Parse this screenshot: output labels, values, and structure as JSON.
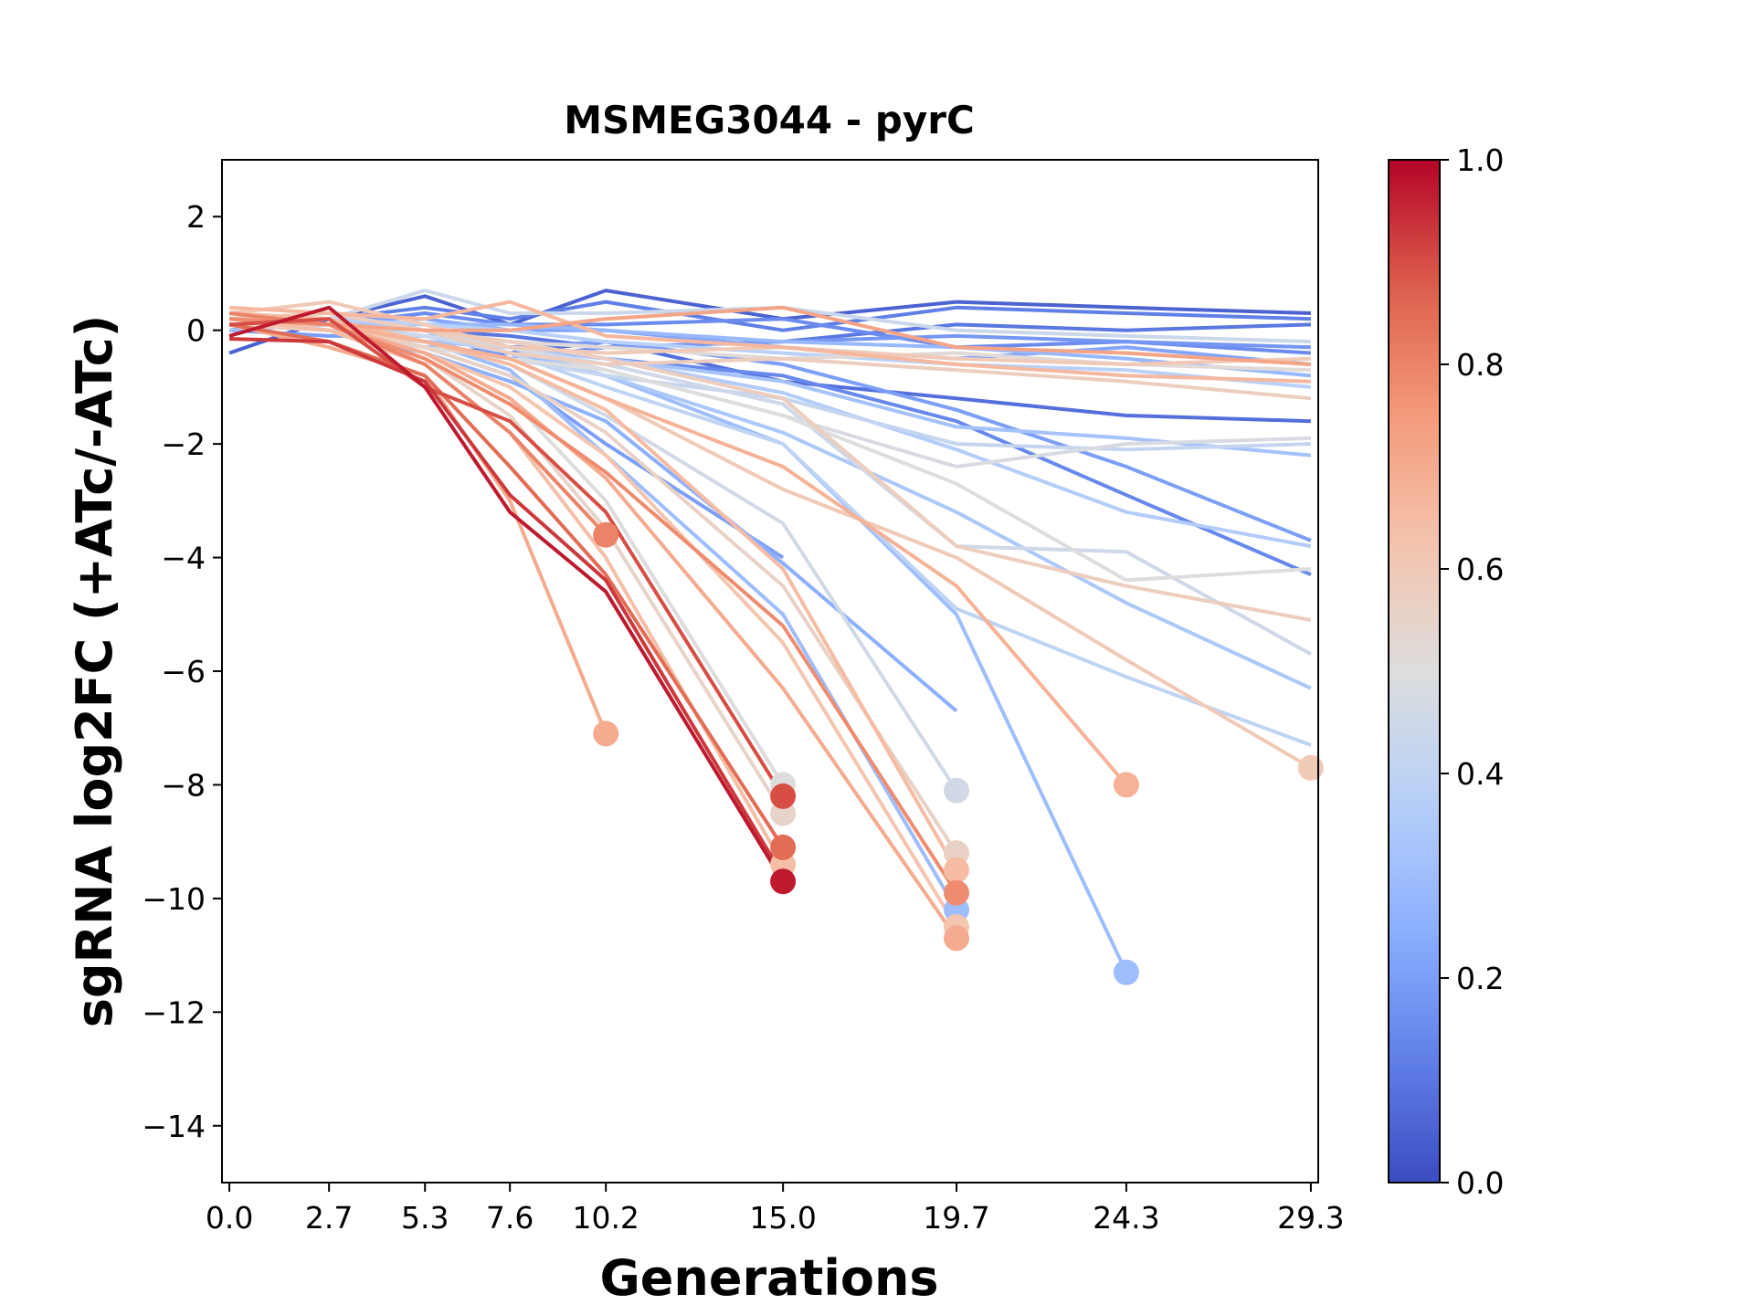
{
  "chart_data": {
    "type": "line",
    "title": "MSMEG3044 - pyrC",
    "xlabel": "Generations",
    "ylabel": "sgRNA log2FC (+ATc/-ATc)",
    "xlim": [
      -0.2,
      29.5
    ],
    "ylim": [
      -15,
      3
    ],
    "x_ticks": [
      "0.0",
      "2.7",
      "5.3",
      "7.6",
      "10.2",
      "15.0",
      "19.7",
      "24.3",
      "29.3"
    ],
    "x_tick_values": [
      0.0,
      2.7,
      5.3,
      7.6,
      10.2,
      15.0,
      19.7,
      24.3,
      29.3
    ],
    "y_ticks": [
      2,
      0,
      -2,
      -4,
      -6,
      -8,
      -10,
      -12,
      -14
    ],
    "y_tick_labels": [
      "2",
      "0",
      "−2",
      "−4",
      "−6",
      "−8",
      "−10",
      "−12",
      "−14"
    ],
    "colormap": "coolwarm",
    "colorbar": {
      "range": [
        0.0,
        1.0
      ],
      "ticks": [
        0.0,
        0.2,
        0.4,
        0.6,
        0.8,
        1.0
      ],
      "tick_labels": [
        "0.0",
        "0.2",
        "0.4",
        "0.6",
        "0.8",
        "1.0"
      ],
      "colors": [
        "#3b4cc0",
        "#6788ee",
        "#9abbff",
        "#c9d7f0",
        "#dddddd",
        "#f7c4a8",
        "#f49a7b",
        "#e0654f",
        "#b40426"
      ]
    },
    "grid": false,
    "legend": "none",
    "series": [
      {
        "c": 0.05,
        "x": [
          0.0,
          2.7,
          5.3,
          7.6,
          10.2,
          15.0,
          19.7,
          24.3,
          29.3
        ],
        "y": [
          -0.4,
          0.2,
          0.6,
          0.1,
          0.7,
          0.2,
          0.5,
          0.4,
          0.3
        ]
      },
      {
        "c": 0.08,
        "x": [
          0.0,
          2.7,
          5.3,
          7.6,
          10.2,
          15.0,
          19.7,
          24.3,
          29.3
        ],
        "y": [
          0.1,
          0.0,
          -0.3,
          -0.4,
          -0.2,
          -0.9,
          -1.2,
          -1.5,
          -1.6
        ]
      },
      {
        "c": 0.1,
        "x": [
          0.0,
          2.7,
          5.3,
          7.6,
          10.2,
          15.0,
          19.7,
          24.3,
          29.3
        ],
        "y": [
          0.2,
          0.1,
          0.0,
          -0.1,
          -0.3,
          -0.2,
          0.1,
          0.0,
          0.1
        ]
      },
      {
        "c": 0.12,
        "x": [
          0.0,
          2.7,
          5.3,
          7.6,
          10.2,
          15.0,
          19.7,
          24.3,
          29.3
        ],
        "y": [
          0.0,
          0.2,
          0.4,
          0.2,
          0.5,
          0.0,
          0.4,
          0.3,
          0.2
        ]
      },
      {
        "c": 0.14,
        "x": [
          0.0,
          2.7,
          5.3,
          7.6,
          10.2,
          15.0,
          19.7,
          24.3,
          29.3
        ],
        "y": [
          0.2,
          0.0,
          -0.2,
          -0.3,
          -0.5,
          -0.8,
          -1.6,
          -2.9,
          -4.3
        ]
      },
      {
        "c": 0.15,
        "x": [
          0.0,
          2.7,
          5.3,
          7.6,
          10.2,
          15.0,
          19.7,
          24.3,
          29.3
        ],
        "y": [
          0.1,
          0.1,
          0.3,
          0.1,
          0.1,
          0.2,
          -0.3,
          -0.2,
          -0.4
        ]
      },
      {
        "c": 0.18,
        "x": [
          0.0,
          2.7,
          5.3,
          7.6,
          10.2,
          15.0,
          19.7,
          24.3,
          29.3
        ],
        "y": [
          0.1,
          0.1,
          0.0,
          -0.5,
          -0.3,
          -0.2,
          -0.1,
          -0.2,
          -0.3
        ]
      },
      {
        "c": 0.2,
        "x": [
          0.0,
          2.7,
          5.3,
          7.6,
          10.2,
          15.0
        ],
        "y": [
          0.2,
          0.1,
          -0.3,
          -0.8,
          -2.0,
          -4.0
        ]
      },
      {
        "c": 0.2,
        "x": [
          0.0,
          2.7,
          5.3,
          7.6,
          10.2,
          15.0,
          19.7,
          24.3,
          29.3
        ],
        "y": [
          0.0,
          -0.1,
          -0.1,
          -0.3,
          -0.2,
          -0.6,
          -1.4,
          -2.4,
          -3.7
        ]
      },
      {
        "c": 0.22,
        "x": [
          0.0,
          2.7,
          5.3,
          7.6,
          10.2,
          15.0,
          19.7,
          24.3,
          29.3
        ],
        "y": [
          0.2,
          0.2,
          0.2,
          0.0,
          0.0,
          -0.3,
          -0.5,
          -0.3,
          -0.6
        ]
      },
      {
        "c": 0.25,
        "x": [
          0.0,
          2.7,
          5.3,
          7.6,
          10.2,
          15.0,
          19.7
        ],
        "y": [
          0.1,
          0.0,
          -0.4,
          -0.9,
          -1.6,
          -4.1,
          -6.7
        ]
      },
      {
        "c": 0.28,
        "x": [
          0.0,
          2.7,
          5.3,
          7.6,
          10.2,
          15.0,
          19.7,
          24.3,
          29.3
        ],
        "y": [
          0.1,
          0.1,
          0.1,
          0.1,
          0.0,
          -0.2,
          -0.3,
          -0.5,
          -0.8
        ]
      },
      {
        "c": 0.3,
        "x": [
          0.0,
          2.7,
          5.3,
          7.6,
          10.2,
          15.0,
          19.7
        ],
        "y": [
          0.2,
          0.1,
          -0.2,
          -0.7,
          -2.2,
          -5.0,
          -10.2
        ],
        "end": true
      },
      {
        "c": 0.3,
        "x": [
          0.0,
          2.7,
          5.3,
          7.6,
          10.2,
          15.0,
          19.7,
          24.3
        ],
        "y": [
          0.2,
          0.1,
          -0.1,
          -0.4,
          -0.8,
          -2.0,
          -5.0,
          -11.3
        ],
        "end": true
      },
      {
        "c": 0.32,
        "x": [
          0.0,
          2.7,
          5.3,
          7.6,
          10.2,
          15.0,
          19.7,
          24.3,
          29.3
        ],
        "y": [
          0.0,
          0.1,
          -0.2,
          -0.3,
          -0.5,
          -0.9,
          -1.7,
          -1.9,
          -2.2
        ]
      },
      {
        "c": 0.34,
        "x": [
          0.0,
          2.7,
          5.3,
          7.6,
          10.2,
          15.0,
          19.7,
          24.3,
          29.3
        ],
        "y": [
          0.3,
          0.2,
          0.0,
          -0.3,
          -0.8,
          -1.8,
          -3.2,
          -4.8,
          -6.3
        ]
      },
      {
        "c": 0.36,
        "x": [
          0.0,
          2.7,
          5.3,
          7.6,
          10.2,
          15.0,
          19.7,
          24.3,
          29.3
        ],
        "y": [
          0.1,
          0.0,
          -0.1,
          -0.2,
          -0.5,
          -1.1,
          -2.1,
          -3.2,
          -3.8
        ]
      },
      {
        "c": 0.38,
        "x": [
          0.0,
          2.7,
          5.3,
          7.6,
          10.2,
          15.0,
          19.7,
          24.3,
          29.3
        ],
        "y": [
          0.2,
          0.2,
          0.1,
          0.0,
          -0.2,
          -0.4,
          -0.6,
          -0.7,
          -1.0
        ]
      },
      {
        "c": 0.4,
        "x": [
          0.0,
          2.7,
          5.3,
          7.6,
          10.2,
          15.0,
          19.7,
          24.3,
          29.3
        ],
        "y": [
          0.1,
          0.1,
          -0.1,
          -0.4,
          -1.0,
          -2.0,
          -4.9,
          -6.1,
          -7.3
        ]
      },
      {
        "c": 0.42,
        "x": [
          0.0,
          2.7,
          5.3,
          7.6,
          10.2,
          15.0,
          19.7,
          24.3,
          29.3
        ],
        "y": [
          0.1,
          0.0,
          -0.2,
          -0.5,
          -0.8,
          -1.2,
          -2.0,
          -2.1,
          -2.0
        ]
      },
      {
        "c": 0.44,
        "x": [
          0.0,
          2.7,
          5.3,
          7.6,
          10.2,
          15.0,
          19.7,
          24.3,
          29.3
        ],
        "y": [
          0.2,
          0.2,
          0.7,
          0.3,
          0.3,
          0.4,
          0.0,
          -0.1,
          -0.2
        ]
      },
      {
        "c": 0.45,
        "x": [
          0.0,
          2.7,
          5.3,
          7.6,
          10.2,
          15.0,
          19.7,
          24.3,
          29.3
        ],
        "y": [
          0.1,
          0.0,
          -0.1,
          -0.3,
          -0.6,
          -1.3,
          -3.8,
          -3.9,
          -5.7
        ]
      },
      {
        "c": 0.46,
        "x": [
          0.0,
          2.7,
          5.3,
          7.6,
          10.2,
          15.0,
          19.7
        ],
        "y": [
          0.2,
          0.1,
          -0.2,
          -0.6,
          -1.5,
          -3.4,
          -8.1
        ],
        "end": true
      },
      {
        "c": 0.48,
        "x": [
          0.0,
          2.7,
          5.3,
          7.6,
          10.2,
          15.0,
          19.7,
          24.3,
          29.3
        ],
        "y": [
          0.1,
          0.1,
          0.0,
          -0.3,
          -0.7,
          -1.5,
          -2.4,
          -2.0,
          -1.9
        ]
      },
      {
        "c": 0.5,
        "x": [
          0.0,
          2.7,
          5.3,
          7.6,
          10.2,
          15.0
        ],
        "y": [
          0.2,
          0.1,
          -0.4,
          -1.2,
          -3.0,
          -8.0
        ],
        "end": true
      },
      {
        "c": 0.5,
        "x": [
          0.0,
          2.7,
          5.3,
          7.6,
          10.2,
          15.0,
          19.7,
          24.3,
          29.3
        ],
        "y": [
          0.1,
          0.0,
          -0.3,
          -0.5,
          -0.7,
          -1.5,
          -2.7,
          -4.4,
          -4.2
        ]
      },
      {
        "c": 0.52,
        "x": [
          0.0,
          2.7,
          5.3,
          7.6,
          10.2,
          15.0,
          19.7,
          24.3,
          29.3
        ],
        "y": [
          0.2,
          0.1,
          0.0,
          -0.2,
          -0.3,
          -0.5,
          -0.4,
          -0.6,
          -0.7
        ]
      },
      {
        "c": 0.55,
        "x": [
          0.0,
          2.7,
          5.3,
          7.6,
          10.2,
          15.0
        ],
        "y": [
          0.2,
          0.0,
          -0.5,
          -1.5,
          -3.5,
          -8.5
        ],
        "end": true
      },
      {
        "c": 0.56,
        "x": [
          0.0,
          2.7,
          5.3,
          7.6,
          10.2,
          15.0,
          19.7
        ],
        "y": [
          0.3,
          0.1,
          -0.3,
          -0.8,
          -1.8,
          -4.5,
          -9.2
        ],
        "end": true
      },
      {
        "c": 0.58,
        "x": [
          0.0,
          2.7,
          5.3,
          7.6,
          10.2,
          15.0,
          19.7,
          24.3,
          29.3
        ],
        "y": [
          0.1,
          0.1,
          0.0,
          -0.2,
          -0.5,
          -1.2,
          -3.8,
          -4.5,
          -5.1
        ]
      },
      {
        "c": 0.58,
        "x": [
          0.0,
          2.7,
          5.3,
          7.6,
          10.2,
          15.0,
          19.7,
          24.3,
          29.3
        ],
        "y": [
          0.2,
          0.3,
          0.0,
          -0.4,
          -0.6,
          -0.5,
          -0.7,
          -0.9,
          -1.2
        ]
      },
      {
        "c": 0.6,
        "x": [
          0.0,
          2.7,
          5.3,
          7.6,
          10.2,
          15.0,
          19.7,
          24.3,
          29.3
        ],
        "y": [
          0.3,
          0.5,
          0.1,
          -0.3,
          -0.4,
          -0.3,
          -0.5,
          -0.6,
          -0.5
        ]
      },
      {
        "c": 0.6,
        "x": [
          0.0,
          2.7,
          5.3,
          7.6,
          10.2,
          15.0,
          19.7,
          24.3,
          29.3
        ],
        "y": [
          0.1,
          0.0,
          -0.2,
          -0.5,
          -1.2,
          -2.8,
          -4.0,
          -5.8,
          -7.7
        ],
        "end": true
      },
      {
        "c": 0.62,
        "x": [
          0.0,
          2.7,
          5.3,
          7.6,
          10.2,
          15.0,
          19.7
        ],
        "y": [
          0.2,
          0.1,
          -0.4,
          -1.0,
          -2.2,
          -5.5,
          -10.5
        ],
        "end": true
      },
      {
        "c": 0.64,
        "x": [
          0.0,
          2.7,
          5.3,
          7.6,
          10.2,
          15.0
        ],
        "y": [
          0.2,
          0.0,
          -0.6,
          -1.8,
          -4.0,
          -9.4
        ],
        "end": true
      },
      {
        "c": 0.65,
        "x": [
          0.0,
          2.7,
          5.3,
          7.6,
          10.2,
          15.0,
          19.7
        ],
        "y": [
          0.3,
          0.2,
          -0.2,
          -0.6,
          -1.4,
          -4.2,
          -9.5
        ],
        "end": true
      },
      {
        "c": 0.66,
        "x": [
          0.0,
          2.7,
          5.3,
          7.6,
          10.2,
          15.0,
          19.7,
          24.3,
          29.3
        ],
        "y": [
          0.4,
          0.3,
          0.2,
          0.5,
          -0.1,
          -0.3,
          -0.6,
          -0.8,
          -0.9
        ]
      },
      {
        "c": 0.68,
        "x": [
          0.0,
          2.7,
          5.3,
          7.6,
          10.2,
          15.0,
          19.7,
          24.3
        ],
        "y": [
          0.2,
          0.1,
          -0.2,
          -0.5,
          -1.2,
          -2.4,
          -4.5,
          -8.0
        ],
        "end": true
      },
      {
        "c": 0.7,
        "x": [
          0.0,
          2.7,
          5.3,
          7.6,
          10.2,
          15.0,
          19.7
        ],
        "y": [
          0.3,
          0.1,
          -0.4,
          -1.2,
          -2.6,
          -6.3,
          -10.7
        ],
        "end": true
      },
      {
        "c": 0.7,
        "x": [
          0.0,
          2.7,
          5.3,
          7.6,
          10.2
        ],
        "y": [
          0.1,
          -0.3,
          -0.8,
          -3.0,
          -7.1
        ],
        "end": true
      },
      {
        "c": 0.72,
        "x": [
          0.0,
          2.7,
          5.3,
          7.6,
          10.2,
          15.0,
          19.7,
          24.3,
          29.3
        ],
        "y": [
          0.2,
          0.1,
          0.0,
          0.0,
          0.2,
          0.4,
          -0.3,
          -0.4,
          -0.6
        ]
      },
      {
        "c": 0.78,
        "x": [
          0.0,
          2.7,
          5.3,
          7.6,
          10.2,
          15.0,
          19.7
        ],
        "y": [
          0.2,
          0.1,
          -0.5,
          -1.3,
          -2.5,
          -5.2,
          -9.9
        ],
        "end": true
      },
      {
        "c": 0.8,
        "x": [
          0.0,
          2.7,
          5.3,
          7.6,
          10.2
        ],
        "y": [
          0.3,
          0.1,
          -0.6,
          -1.8,
          -3.6
        ],
        "end": true
      },
      {
        "c": 0.85,
        "x": [
          0.0,
          2.7,
          5.3,
          7.6,
          10.2,
          15.0
        ],
        "y": [
          0.1,
          -0.2,
          -0.8,
          -2.4,
          -4.3,
          -9.1
        ],
        "end": true
      },
      {
        "c": 0.9,
        "x": [
          0.0,
          2.7,
          5.3,
          7.6,
          10.2,
          15.0
        ],
        "y": [
          0.1,
          0.2,
          -1.0,
          -1.6,
          -3.2,
          -8.2
        ],
        "end": true
      },
      {
        "c": 0.97,
        "x": [
          0.0,
          2.7,
          5.3,
          7.6,
          10.2,
          15.0
        ],
        "y": [
          -0.1,
          0.4,
          -1.0,
          -3.2,
          -4.6,
          -9.7
        ],
        "end": true
      },
      {
        "c": 0.93,
        "x": [
          0.0,
          2.7,
          5.3,
          7.6,
          10.2,
          15.0
        ],
        "y": [
          -0.15,
          -0.2,
          -0.9,
          -2.9,
          -4.4,
          -9.6
        ]
      }
    ]
  }
}
